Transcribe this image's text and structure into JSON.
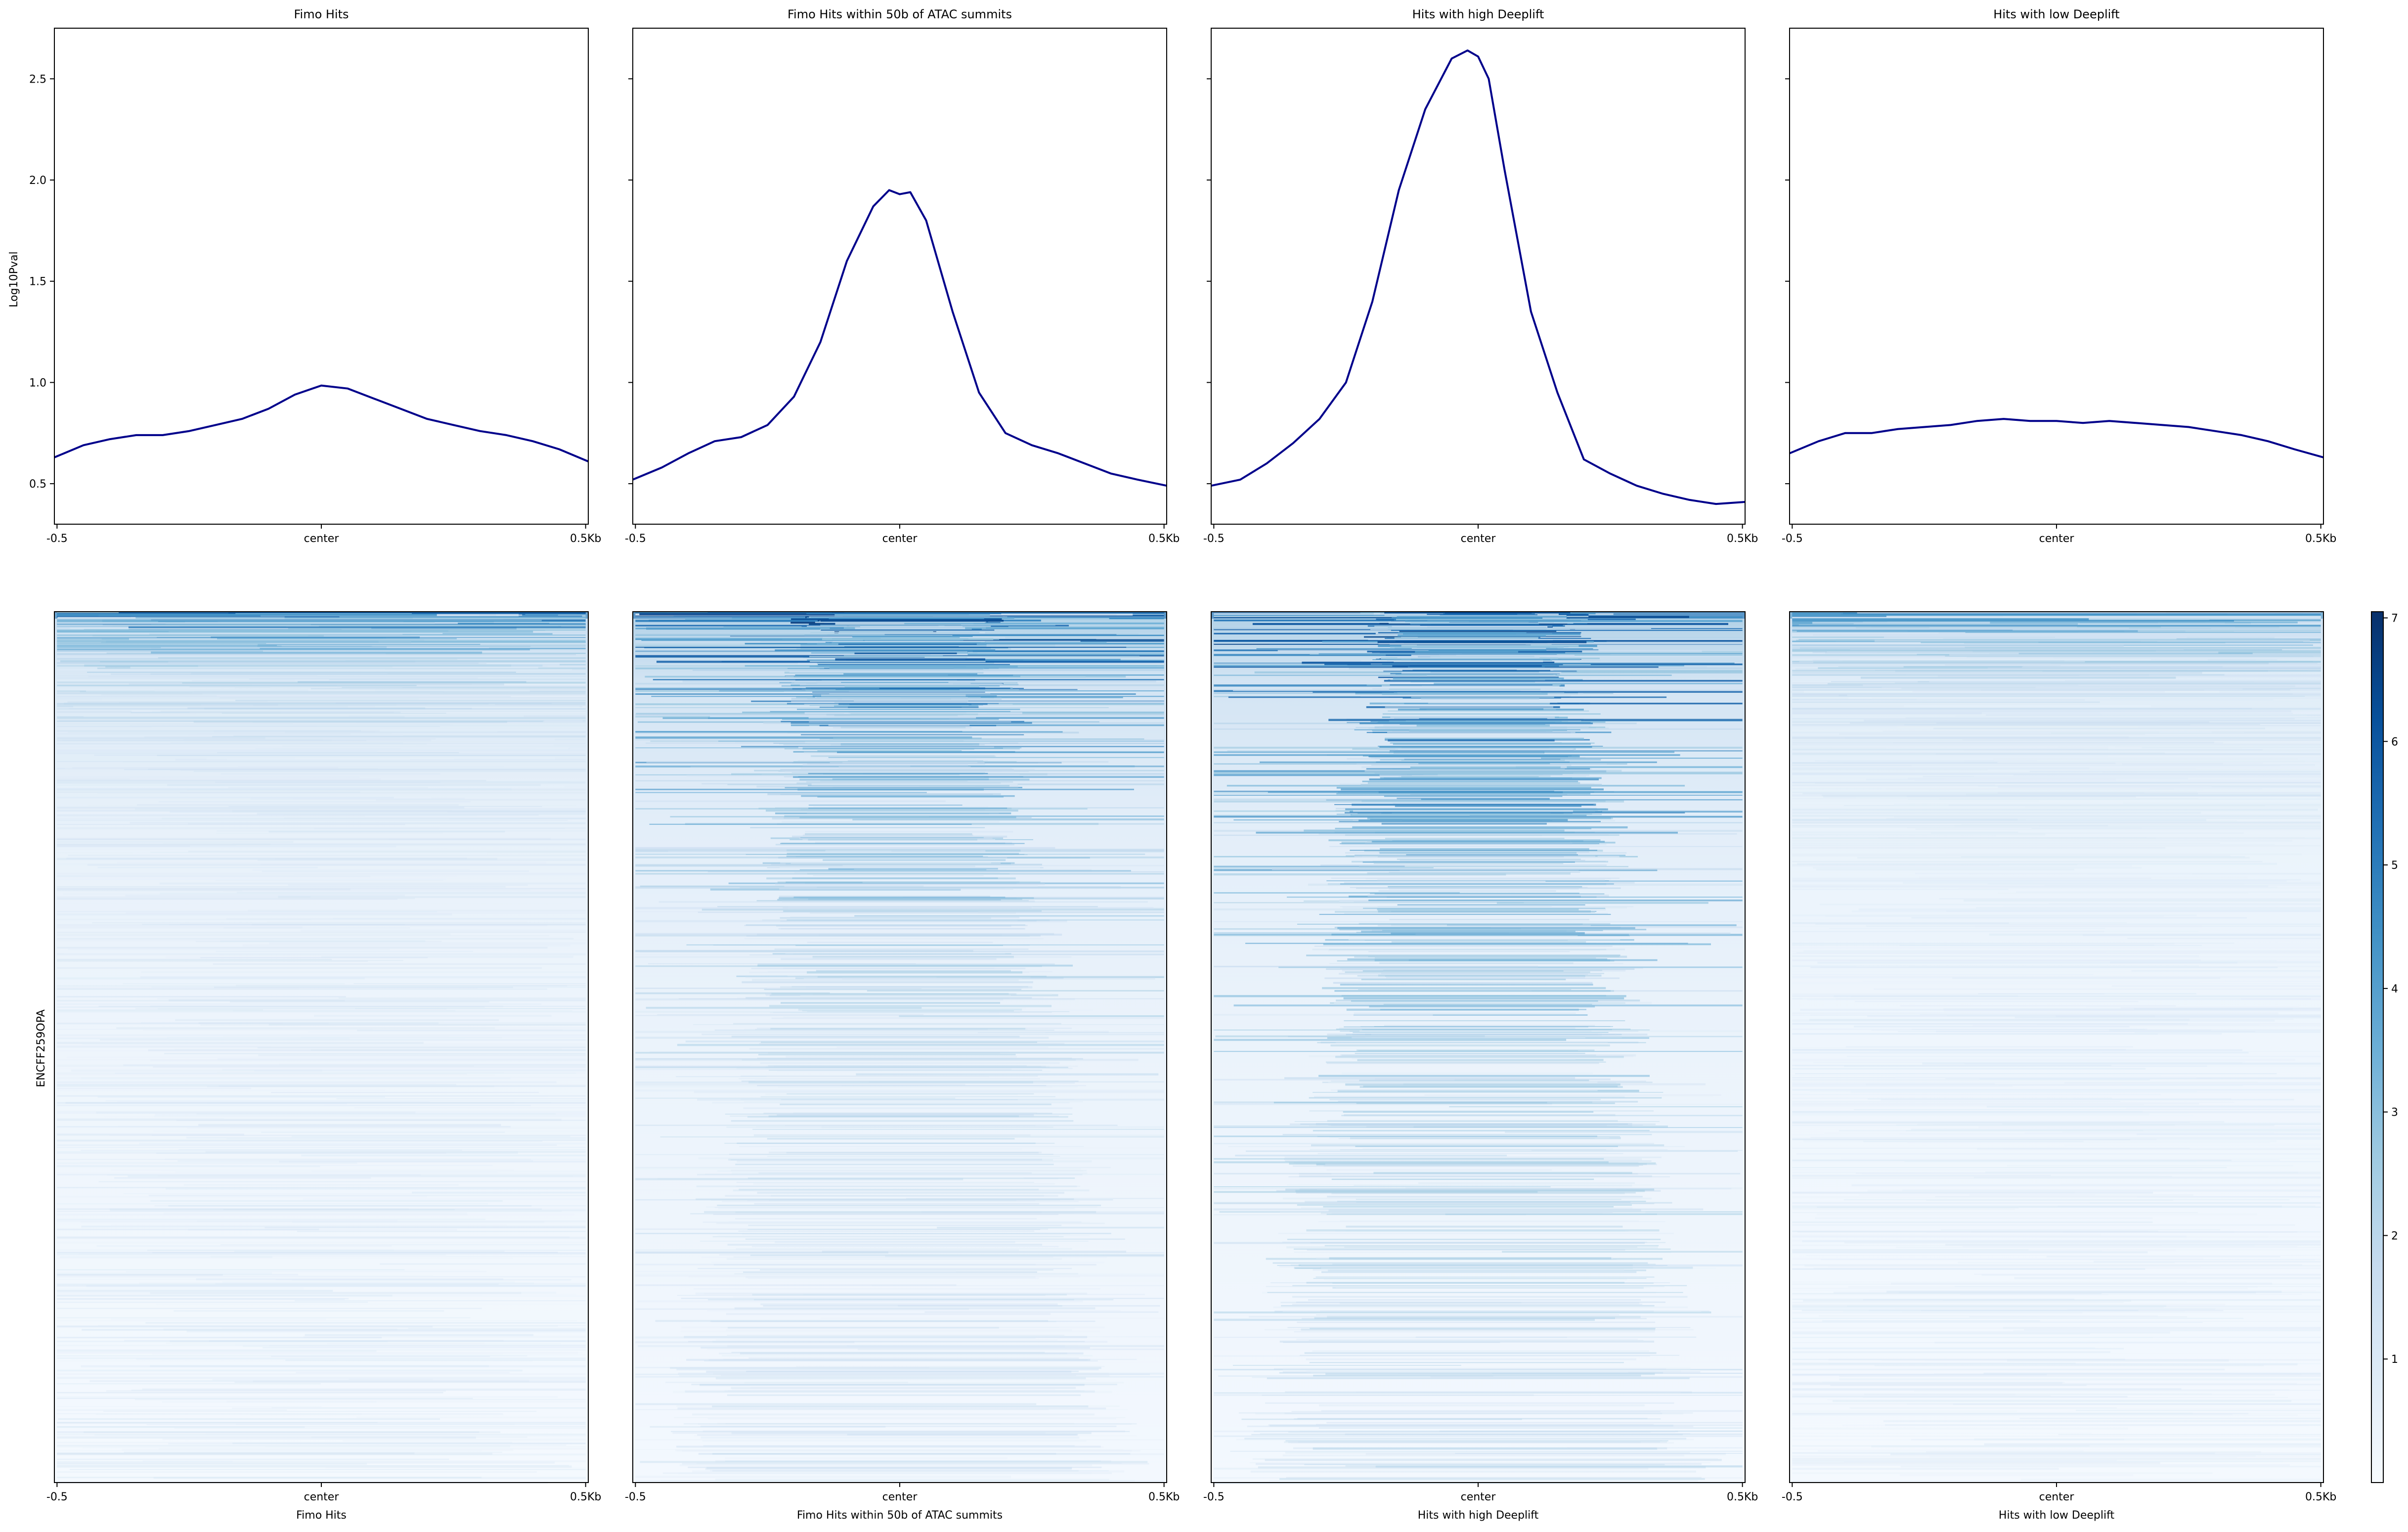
{
  "chart_data": {
    "type": "heatmap",
    "profile_ylabel": "Log10Pval",
    "heatmap_ylabel": "ENCFF259OPA",
    "profile_ylim": [
      0.3,
      2.75
    ],
    "profile_yticks": [
      0.5,
      1.0,
      1.5,
      2.0,
      2.5
    ],
    "profile_ytick_labels": [
      "0.5",
      "1.0",
      "1.5",
      "2.0",
      "2.5"
    ],
    "xtick_labels": [
      "-0.5",
      "center",
      "0.5Kb"
    ],
    "xtick_positions": [
      -0.5,
      0,
      0.5
    ],
    "xlim": [
      -0.505,
      0.505
    ],
    "line_color": "#00008b",
    "colormap": "Blues",
    "colorbar": {
      "range": [
        0,
        7.05
      ],
      "ticks": [
        1,
        2,
        3,
        4,
        5,
        6,
        7
      ],
      "tick_labels": [
        "1",
        "2",
        "3",
        "4",
        "5",
        "6",
        "7"
      ]
    },
    "panels": [
      {
        "title": "Fimo Hits",
        "xlabel": "Fimo Hits",
        "profile": {
          "x": [
            -0.505,
            -0.45,
            -0.4,
            -0.35,
            -0.3,
            -0.25,
            -0.2,
            -0.15,
            -0.1,
            -0.05,
            0,
            0.05,
            0.1,
            0.15,
            0.2,
            0.25,
            0.3,
            0.35,
            0.4,
            0.45,
            0.505
          ],
          "y": [
            0.63,
            0.69,
            0.72,
            0.74,
            0.74,
            0.76,
            0.79,
            0.82,
            0.87,
            0.94,
            0.985,
            0.97,
            0.92,
            0.87,
            0.82,
            0.79,
            0.76,
            0.74,
            0.71,
            0.67,
            0.61
          ]
        },
        "heatmap": {
          "peak_intensity": 6.5,
          "top_rows_fraction": 0.06,
          "center_focus": 0.05,
          "background": 0.7
        }
      },
      {
        "title": "Fimo Hits within 50b of ATAC summits",
        "xlabel": "Fimo Hits within 50b of ATAC summits",
        "profile": {
          "x": [
            -0.505,
            -0.45,
            -0.4,
            -0.35,
            -0.3,
            -0.25,
            -0.2,
            -0.15,
            -0.1,
            -0.05,
            -0.02,
            0,
            0.02,
            0.05,
            0.1,
            0.15,
            0.2,
            0.25,
            0.3,
            0.35,
            0.4,
            0.45,
            0.505
          ],
          "y": [
            0.52,
            0.58,
            0.65,
            0.71,
            0.73,
            0.79,
            0.93,
            1.2,
            1.6,
            1.87,
            1.95,
            1.93,
            1.94,
            1.8,
            1.35,
            0.95,
            0.75,
            0.69,
            0.65,
            0.6,
            0.55,
            0.52,
            0.49
          ]
        },
        "heatmap": {
          "peak_intensity": 7.0,
          "top_rows_fraction": 0.3,
          "center_focus": 0.6,
          "background": 0.9
        }
      },
      {
        "title": "Hits with high Deeplift",
        "xlabel": "Hits with high Deeplift",
        "profile": {
          "x": [
            -0.505,
            -0.45,
            -0.4,
            -0.35,
            -0.3,
            -0.25,
            -0.2,
            -0.15,
            -0.1,
            -0.05,
            -0.02,
            0,
            0.02,
            0.05,
            0.1,
            0.15,
            0.2,
            0.25,
            0.3,
            0.35,
            0.4,
            0.45,
            0.505
          ],
          "y": [
            0.49,
            0.52,
            0.6,
            0.7,
            0.82,
            1.0,
            1.4,
            1.95,
            2.35,
            2.6,
            2.64,
            2.61,
            2.5,
            2.05,
            1.35,
            0.95,
            0.62,
            0.55,
            0.49,
            0.45,
            0.42,
            0.4,
            0.41
          ]
        },
        "heatmap": {
          "peak_intensity": 7.0,
          "top_rows_fraction": 0.45,
          "center_focus": 0.75,
          "background": 0.9
        }
      },
      {
        "title": "Hits with low Deeplift",
        "xlabel": "Hits with low Deeplift",
        "profile": {
          "x": [
            -0.505,
            -0.45,
            -0.4,
            -0.35,
            -0.3,
            -0.25,
            -0.2,
            -0.15,
            -0.1,
            -0.05,
            0,
            0.05,
            0.1,
            0.15,
            0.2,
            0.25,
            0.3,
            0.35,
            0.4,
            0.45,
            0.505
          ],
          "y": [
            0.65,
            0.71,
            0.75,
            0.75,
            0.77,
            0.78,
            0.79,
            0.81,
            0.82,
            0.81,
            0.81,
            0.8,
            0.81,
            0.8,
            0.79,
            0.78,
            0.76,
            0.74,
            0.71,
            0.67,
            0.63
          ]
        },
        "heatmap": {
          "peak_intensity": 5.5,
          "top_rows_fraction": 0.06,
          "center_focus": 0.0,
          "background": 0.7
        }
      }
    ]
  }
}
